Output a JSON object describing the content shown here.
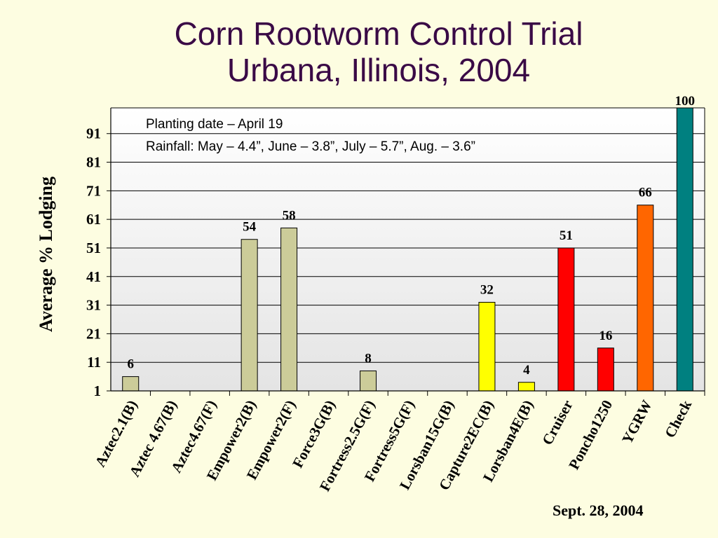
{
  "chart_data": {
    "type": "bar",
    "title": "Corn Rootworm Control Trial",
    "subtitle": "Urbana, Illinois, 2004",
    "xlabel": "",
    "ylabel": "Average % Lodging",
    "ylim": [
      1,
      100
    ],
    "yticks": [
      1,
      11,
      21,
      31,
      41,
      51,
      61,
      71,
      81,
      91
    ],
    "grid": true,
    "legend": "none",
    "categories": [
      "Aztec2.1(B)",
      "Aztec 4.67(B)",
      "Aztec4.67(F)",
      "Empower2(B)",
      "Empower2(F)",
      "Force3G(B)",
      "Fortress2.5G(F)",
      "Fortress5G(F)",
      "Lorsban15G(B)",
      "Capture2EC(B)",
      "Lorsban4E(B)",
      "Cruiser",
      "Poncho1250",
      "YGRW",
      "Check"
    ],
    "values": [
      6,
      null,
      null,
      54,
      58,
      null,
      8,
      null,
      null,
      32,
      4,
      51,
      16,
      66,
      100
    ],
    "data_labels": [
      "6",
      "",
      "",
      "54",
      "58",
      "",
      "8",
      "",
      "",
      "32",
      "4",
      "51",
      "16",
      "66",
      "100"
    ],
    "bar_colors": [
      "#cccc99",
      "#cccc99",
      "#cccc99",
      "#cccc99",
      "#cccc99",
      "#cccc99",
      "#cccc99",
      "#cccc99",
      "#cccc99",
      "#ffff00",
      "#ffff00",
      "#ff0000",
      "#ff0000",
      "#ff6600",
      "#008080"
    ],
    "annotations": [
      "Planting date – April 19",
      "Rainfall: May – 4.4”, June – 3.8”, July – 5.7”, Aug. – 3.6”"
    ],
    "footnote": "Sept. 28, 2004"
  },
  "colors": {
    "background": "#fdfde1",
    "title": "#3a0a46",
    "gridline": "#000000"
  }
}
